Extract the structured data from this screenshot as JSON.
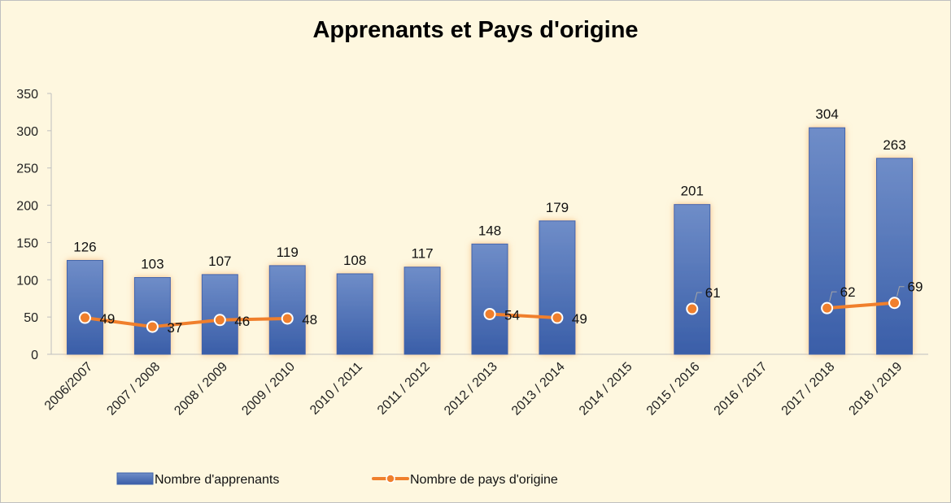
{
  "chart_data": {
    "type": "bar",
    "title": "Apprenants et Pays d'origine",
    "categories": [
      "2006/2007",
      "2007 / 2008",
      "2008 / 2009",
      "2009 / 2010",
      "2010 / 2011",
      "2011 / 2012",
      "2012 / 2013",
      "2013 / 2014",
      "2014 / 2015",
      "2015 / 2016",
      "2016 / 2017",
      "2017 / 2018",
      "2018 / 2019"
    ],
    "series": [
      {
        "name": "Nombre d'apprenants",
        "type": "bar",
        "color": "#4a6fb5",
        "values": [
          126,
          103,
          107,
          119,
          108,
          117,
          148,
          179,
          null,
          201,
          null,
          304,
          263
        ]
      },
      {
        "name": "Nombre de pays d'origine",
        "type": "line",
        "color": "#f07f2c",
        "values": [
          49,
          37,
          46,
          48,
          null,
          null,
          54,
          49,
          null,
          61,
          null,
          62,
          69
        ]
      }
    ],
    "ylim": [
      0,
      350
    ],
    "yticks": [
      0,
      50,
      100,
      150,
      200,
      250,
      300,
      350
    ],
    "xlabel": "",
    "ylabel": "",
    "grid": false,
    "legend": "bottom"
  }
}
